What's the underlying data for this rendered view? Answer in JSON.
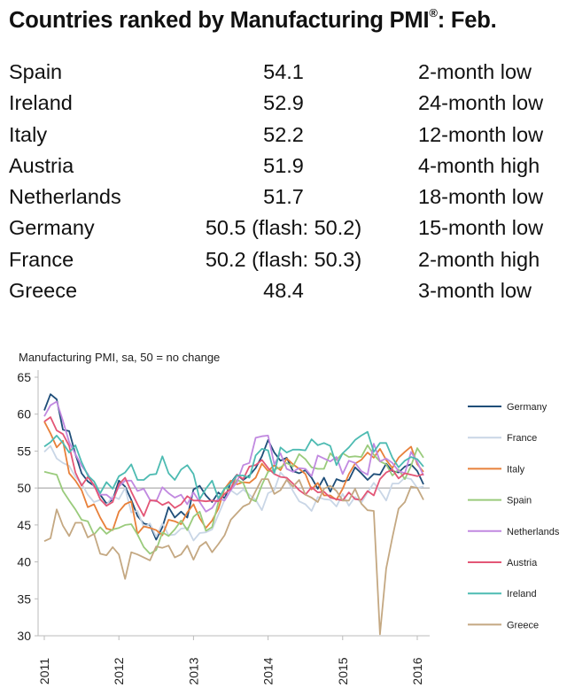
{
  "title": {
    "main": "Countries ranked by Manufacturing PMI",
    "reg": "®",
    "suffix": ": Feb."
  },
  "ranking": [
    {
      "country": "Spain",
      "value": "54.1",
      "trend": "2-month low"
    },
    {
      "country": "Ireland",
      "value": "52.9",
      "trend": "24-month low"
    },
    {
      "country": "Italy",
      "value": "52.2",
      "trend": "12-month low"
    },
    {
      "country": "Austria",
      "value": "51.9",
      "trend": "4-month high"
    },
    {
      "country": "Netherlands",
      "value": "51.7",
      "trend": "18-month low"
    },
    {
      "country": "Germany",
      "value": "50.5 (flash: 50.2)",
      "trend": "15-month low"
    },
    {
      "country": "France",
      "value": "50.2 (flash: 50.3)",
      "trend": "2-month high"
    },
    {
      "country": "Greece",
      "value": "48.4",
      "trend": "3-month low"
    }
  ],
  "chart_data": {
    "type": "line",
    "title": "Manufacturing PMI, sa, 50 = no change",
    "ylim": [
      30,
      65
    ],
    "yticks": [
      30,
      35,
      40,
      45,
      50,
      55,
      60,
      65
    ],
    "xticks": [
      "2011",
      "2012",
      "2013",
      "2014",
      "2015",
      "2016"
    ],
    "reference_line": 50,
    "grid": false,
    "legend": "right",
    "x_range": [
      "2011-01",
      "2016-02"
    ],
    "series": [
      {
        "name": "Germany",
        "color": "#1f4e79",
        "values": [
          60.5,
          62.7,
          62.0,
          57.9,
          57.7,
          54.6,
          52.0,
          50.9,
          50.3,
          49.1,
          47.9,
          48.4,
          51.0,
          50.2,
          48.4,
          46.2,
          45.2,
          45.0,
          43.0,
          44.7,
          47.4,
          46.0,
          46.8,
          46.0,
          49.8,
          50.3,
          49.0,
          48.1,
          49.4,
          48.6,
          50.7,
          51.8,
          51.1,
          51.7,
          52.7,
          54.3,
          56.5,
          54.8,
          53.7,
          54.1,
          52.3,
          52.0,
          52.4,
          51.4,
          49.9,
          51.4,
          49.5,
          51.2,
          50.9,
          51.1,
          52.8,
          52.0,
          51.1,
          51.9,
          51.8,
          53.3,
          52.3,
          52.1,
          52.9,
          53.2,
          52.3,
          50.5
        ]
      },
      {
        "name": "France",
        "color": "#c9d6e6",
        "values": [
          54.9,
          55.7,
          54.0,
          53.4,
          53.0,
          51.5,
          50.6,
          49.1,
          48.1,
          48.4,
          47.7,
          48.9,
          48.5,
          50.0,
          46.7,
          46.9,
          44.7,
          45.2,
          43.4,
          45.2,
          43.6,
          43.7,
          44.5,
          44.6,
          42.9,
          43.9,
          44.0,
          44.4,
          46.4,
          48.4,
          49.7,
          49.1,
          49.8,
          49.1,
          48.4,
          47.0,
          49.3,
          49.7,
          52.1,
          51.2,
          49.6,
          48.2,
          47.8,
          46.9,
          48.8,
          48.5,
          48.4,
          47.5,
          49.2,
          47.6,
          48.8,
          48.0,
          49.4,
          50.7,
          49.6,
          48.3,
          50.6,
          50.6,
          51.4,
          51.2,
          50.0,
          50.2
        ]
      },
      {
        "name": "Italy",
        "color": "#e8803a",
        "values": [
          59.0,
          57.4,
          55.5,
          56.4,
          52.0,
          51.0,
          49.7,
          47.4,
          47.8,
          46.0,
          44.5,
          44.3,
          46.8,
          47.8,
          48.2,
          43.8,
          44.8,
          44.6,
          44.3,
          43.6,
          45.7,
          45.5,
          45.1,
          46.7,
          47.8,
          45.9,
          44.6,
          45.6,
          47.2,
          49.9,
          51.0,
          50.5,
          50.8,
          50.7,
          51.4,
          53.3,
          52.3,
          53.1,
          52.4,
          54.0,
          53.2,
          52.6,
          51.9,
          49.8,
          50.7,
          49.0,
          49.0,
          48.4,
          49.9,
          51.9,
          53.3,
          53.8,
          54.8,
          54.1,
          55.3,
          53.8,
          52.7,
          54.1,
          54.9,
          55.6,
          53.2,
          52.2
        ]
      },
      {
        "name": "Spain",
        "color": "#9acb7c",
        "values": [
          52.2,
          52.0,
          51.8,
          49.6,
          48.3,
          47.1,
          45.7,
          45.5,
          43.7,
          44.7,
          43.8,
          44.4,
          44.6,
          45.0,
          45.1,
          43.7,
          42.0,
          41.1,
          41.6,
          44.0,
          43.5,
          44.4,
          45.6,
          44.3,
          46.1,
          46.8,
          44.2,
          44.7,
          48.1,
          50.0,
          49.8,
          51.1,
          50.7,
          48.6,
          48.2,
          50.4,
          52.2,
          52.5,
          52.8,
          53.4,
          52.9,
          54.6,
          53.9,
          52.8,
          52.6,
          52.6,
          54.7,
          53.8,
          54.7,
          54.2,
          54.3,
          54.2,
          55.8,
          54.5,
          53.6,
          53.2,
          51.7,
          52.5,
          51.2,
          53.0,
          55.4,
          54.1
        ]
      },
      {
        "name": "Netherlands",
        "color": "#c189e0",
        "values": [
          59.7,
          61.2,
          61.7,
          59.1,
          56.2,
          54.6,
          53.0,
          51.9,
          50.2,
          49.1,
          49.1,
          48.4,
          50.2,
          51.0,
          51.0,
          49.6,
          49.9,
          48.4,
          48.2,
          50.1,
          49.3,
          48.7,
          49.1,
          47.8,
          49.4,
          48.1,
          46.8,
          47.3,
          48.6,
          48.3,
          49.7,
          50.8,
          53.1,
          53.4,
          56.8,
          57.0,
          57.1,
          53.2,
          54.7,
          52.6,
          52.2,
          52.7,
          52.6,
          51.6,
          54.4,
          54.0,
          53.6,
          54.2,
          51.9,
          53.7,
          53.4,
          52.3,
          51.8,
          56.0,
          53.6,
          54.0,
          53.4,
          52.3,
          52.0,
          54.9,
          53.5,
          51.7
        ]
      },
      {
        "name": "Austria",
        "color": "#e35676",
        "values": [
          59.0,
          59.6,
          57.8,
          57.3,
          55.7,
          52.1,
          50.3,
          51.5,
          50.4,
          48.5,
          47.6,
          48.1,
          50.5,
          51.4,
          49.5,
          47.8,
          46.2,
          48.3,
          48.3,
          47.7,
          48.1,
          47.3,
          47.8,
          48.9,
          48.3,
          48.3,
          48.2,
          48.3,
          48.2,
          49.2,
          49.9,
          51.8,
          51.2,
          52.9,
          53.1,
          53.8,
          52.7,
          51.9,
          51.5,
          51.4,
          50.6,
          49.7,
          49.1,
          50.1,
          49.4,
          49.5,
          48.7,
          48.5,
          48.3,
          49.4,
          48.5,
          48.4,
          49.6,
          49.0,
          51.2,
          52.1,
          52.5,
          51.3,
          52.0,
          51.8,
          51.6,
          51.9
        ]
      },
      {
        "name": "Ireland",
        "color": "#4dbbb2",
        "values": [
          55.6,
          56.2,
          57.1,
          56.1,
          54.8,
          55.8,
          53.5,
          51.7,
          50.9,
          49.3,
          50.8,
          49.9,
          51.6,
          52.1,
          53.2,
          51.1,
          51.1,
          51.8,
          51.9,
          54.3,
          52.0,
          51.1,
          52.5,
          53.1,
          51.9,
          48.5,
          49.9,
          51.0,
          48.6,
          49.9,
          50.6,
          51.7,
          51.7,
          51.4,
          54.4,
          55.3,
          55.1,
          52.0,
          55.5,
          54.8,
          55.2,
          55.2,
          55.1,
          56.6,
          55.8,
          56.1,
          55.7,
          53.1,
          54.7,
          55.5,
          56.5,
          57.1,
          57.6,
          54.9,
          56.1,
          56.1,
          54.1,
          52.8,
          53.7,
          54.2,
          53.9,
          52.9
        ]
      },
      {
        "name": "Greece",
        "color": "#c4a882",
        "values": [
          42.8,
          43.2,
          47.1,
          44.9,
          43.5,
          45.3,
          45.3,
          43.3,
          43.8,
          41.1,
          40.9,
          42.0,
          41.0,
          37.7,
          41.3,
          41.0,
          40.6,
          40.2,
          42.1,
          41.9,
          42.2,
          40.6,
          41.0,
          42.2,
          40.3,
          42.1,
          42.7,
          41.3,
          42.4,
          43.6,
          45.7,
          46.6,
          47.5,
          47.9,
          49.6,
          51.2,
          51.2,
          49.2,
          49.7,
          51.1,
          50.2,
          51.1,
          49.1,
          48.7,
          48.1,
          49.9,
          50.3,
          49.6,
          48.3,
          48.3,
          49.9,
          47.9,
          47.0,
          46.9,
          30.2,
          39.1,
          43.3,
          47.2,
          48.1,
          50.2,
          50.0,
          48.4
        ]
      }
    ]
  }
}
